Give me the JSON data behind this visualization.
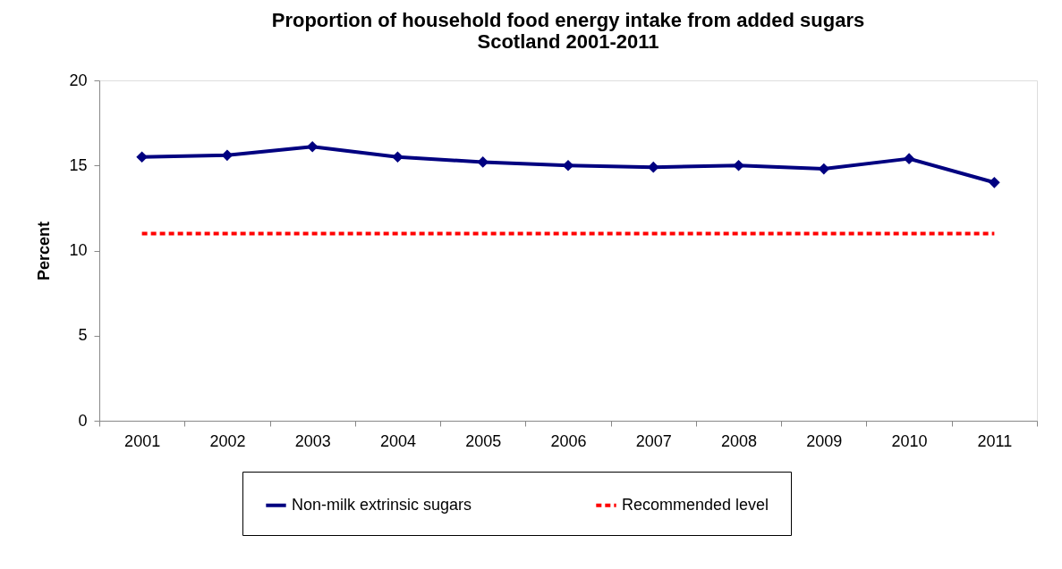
{
  "chart_data": {
    "type": "line",
    "title": "Proportion of household food energy intake from added sugars",
    "subtitle": "Scotland 2001-2011",
    "ylabel": "Percent",
    "categories": [
      "2001",
      "2002",
      "2003",
      "2004",
      "2005",
      "2006",
      "2007",
      "2008",
      "2009",
      "2010",
      "2011"
    ],
    "series": [
      {
        "name": "Non-milk extrinsic sugars",
        "color": "#000080",
        "marker": "diamond",
        "line_style": "solid",
        "values": [
          15.5,
          15.6,
          16.1,
          15.5,
          15.2,
          15.0,
          14.9,
          15.0,
          14.8,
          15.4,
          14.0
        ]
      },
      {
        "name": "Recommended level",
        "color": "#ff0000",
        "marker": "none",
        "line_style": "dashed",
        "values": [
          11,
          11,
          11,
          11,
          11,
          11,
          11,
          11,
          11,
          11,
          11
        ]
      }
    ],
    "ylim": [
      0,
      20
    ],
    "yticks": [
      0,
      5,
      10,
      15,
      20
    ],
    "grid": false,
    "legend": "bottom"
  }
}
